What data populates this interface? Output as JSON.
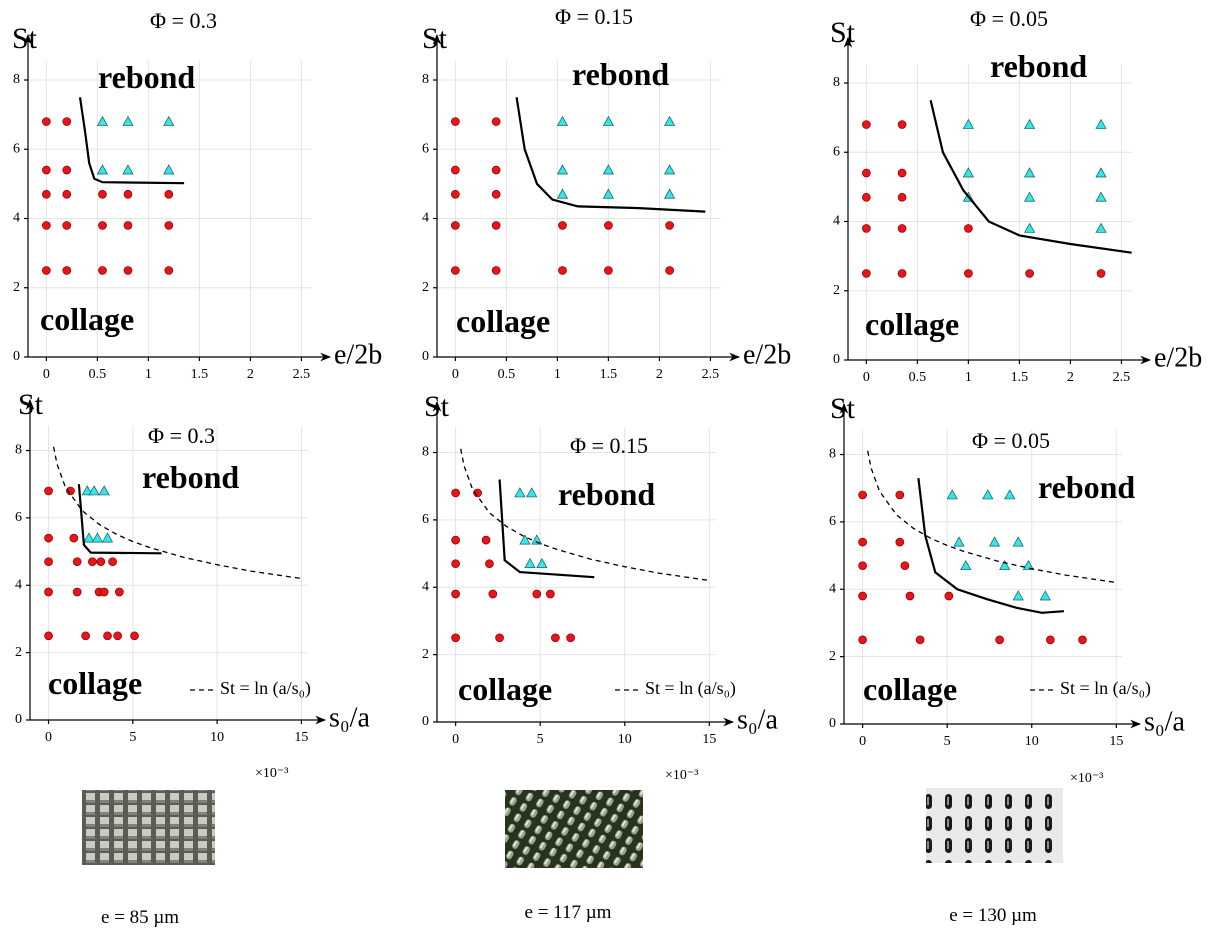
{
  "chart_data": [
    {
      "type": "scatter",
      "title": "Φ = 0.3",
      "xlabel": "e/2b",
      "ylabel": "St",
      "xlim": [
        -0.18,
        2.78
      ],
      "ylim": [
        0,
        9.3
      ],
      "xticks": [
        0,
        0.5,
        1,
        1.5,
        2,
        2.5
      ],
      "yticks": [
        0,
        2,
        4,
        6,
        8
      ],
      "grid": true,
      "series": [
        {
          "name": "collage",
          "color": "#e8141b",
          "label_color": "#f0141b",
          "marker": "circle",
          "x": [
            0,
            0,
            0,
            0,
            0,
            0.2,
            0.2,
            0.2,
            0.2,
            0.2,
            0.55,
            0.55,
            0.55,
            0.8,
            0.8,
            0.8,
            1.2,
            1.2,
            1.2
          ],
          "values": [
            6.8,
            5.4,
            4.7,
            3.8,
            2.5,
            6.8,
            5.4,
            4.7,
            3.8,
            2.5,
            4.7,
            3.8,
            2.5,
            4.7,
            3.8,
            2.5,
            4.7,
            3.8,
            2.5
          ]
        },
        {
          "name": "rebond",
          "color": "#33e6ec",
          "label_color": "#1a9a9a",
          "marker": "triangle",
          "x": [
            0.55,
            0.55,
            0.8,
            0.8,
            1.2,
            1.2
          ],
          "values": [
            6.8,
            5.4,
            6.8,
            5.4,
            6.8,
            5.4
          ]
        },
        {
          "color": "#000000",
          "line": "solid",
          "x": [
            0.33,
            0.38,
            0.42,
            0.47,
            0.55,
            1.35
          ],
          "values": [
            7.5,
            6.5,
            5.6,
            5.15,
            5.05,
            5.02
          ]
        }
      ]
    },
    {
      "type": "scatter",
      "title": "Φ = 0.15",
      "xlabel": "e/2b",
      "ylabel": "St",
      "xlim": [
        -0.18,
        2.78
      ],
      "ylim": [
        0,
        9.3
      ],
      "xticks": [
        0,
        0.5,
        1,
        1.5,
        2,
        2.5
      ],
      "yticks": [
        0,
        2,
        4,
        6,
        8
      ],
      "grid": true,
      "series": [
        {
          "name": "collage",
          "color": "#e8141b",
          "label_color": "#f0141b",
          "marker": "circle",
          "x": [
            0,
            0,
            0,
            0,
            0,
            0.4,
            0.4,
            0.4,
            0.4,
            0.4,
            1.05,
            1.05,
            1.5,
            1.5,
            2.1,
            2.1
          ],
          "values": [
            6.8,
            5.4,
            4.7,
            3.8,
            2.5,
            6.8,
            5.4,
            4.7,
            3.8,
            2.5,
            3.8,
            2.5,
            3.8,
            2.5,
            3.8,
            2.5
          ]
        },
        {
          "name": "rebond",
          "color": "#33e6ec",
          "label_color": "#1a9a9a",
          "marker": "triangle",
          "x": [
            1.05,
            1.05,
            1.05,
            1.5,
            1.5,
            1.5,
            2.1,
            2.1,
            2.1
          ],
          "values": [
            6.8,
            5.4,
            4.7,
            6.8,
            5.4,
            4.7,
            6.8,
            5.4,
            4.7
          ]
        },
        {
          "color": "#000000",
          "line": "solid",
          "x": [
            0.6,
            0.68,
            0.8,
            0.95,
            1.2,
            1.8,
            2.45
          ],
          "values": [
            7.5,
            6.0,
            5.0,
            4.55,
            4.35,
            4.3,
            4.2
          ]
        }
      ]
    },
    {
      "type": "scatter",
      "title": "Φ = 0.05",
      "xlabel": "e/2b",
      "ylabel": "St",
      "xlim": [
        -0.18,
        2.78
      ],
      "ylim": [
        0,
        9.3
      ],
      "xticks": [
        0,
        0.5,
        1,
        1.5,
        2,
        2.5
      ],
      "yticks": [
        0,
        2,
        4,
        6,
        8
      ],
      "grid": true,
      "series": [
        {
          "name": "collage",
          "color": "#e8141b",
          "label_color": "#f0141b",
          "marker": "circle",
          "x": [
            0,
            0,
            0,
            0,
            0,
            0.35,
            0.35,
            0.35,
            0.35,
            0.35,
            1.0,
            1.0,
            1.6,
            2.3
          ],
          "values": [
            6.8,
            5.4,
            4.7,
            3.8,
            2.5,
            6.8,
            5.4,
            4.7,
            3.8,
            2.5,
            3.8,
            2.5,
            2.5,
            2.5
          ]
        },
        {
          "name": "rebond",
          "color": "#33e6ec",
          "label_color": "#1a9a9a",
          "marker": "triangle",
          "x": [
            1.0,
            1.0,
            1.0,
            1.6,
            1.6,
            1.6,
            1.6,
            2.3,
            2.3,
            2.3,
            2.3
          ],
          "values": [
            6.8,
            5.4,
            4.7,
            6.8,
            5.4,
            4.7,
            3.8,
            6.8,
            5.4,
            4.7,
            3.8
          ]
        },
        {
          "color": "#000000",
          "line": "solid",
          "x": [
            0.63,
            0.75,
            0.95,
            1.2,
            1.5,
            2.0,
            2.6
          ],
          "values": [
            7.5,
            6.0,
            4.9,
            4.0,
            3.6,
            3.35,
            3.1
          ]
        }
      ]
    },
    {
      "type": "scatter",
      "title": "Φ = 0.3",
      "xlabel": "s₀/a",
      "ylabel": "St",
      "x_multiplier": "×10⁻³",
      "xlim": [
        -1.1,
        16.4
      ],
      "ylim": [
        0,
        9.5
      ],
      "xticks": [
        0,
        5,
        10,
        15
      ],
      "yticks": [
        0,
        2,
        4,
        6,
        8
      ],
      "grid": true,
      "series": [
        {
          "name": "collage",
          "color": "#e8141b",
          "label_color": "#f0141b",
          "marker": "circle",
          "x": [
            0,
            1.3,
            0,
            1.5,
            0,
            1.7,
            2.6,
            3.1,
            3.8,
            0,
            1.7,
            3,
            3.3,
            4.2,
            0,
            2.2,
            3.5,
            4.1,
            5.1
          ],
          "values": [
            6.8,
            6.8,
            5.4,
            5.4,
            4.7,
            4.7,
            4.7,
            4.7,
            4.7,
            3.8,
            3.8,
            3.8,
            3.8,
            3.8,
            2.5,
            2.5,
            2.5,
            2.5,
            2.5
          ]
        },
        {
          "name": "rebond",
          "color": "#33e6ec",
          "label_color": "#1a9a9a",
          "marker": "triangle",
          "x": [
            2.3,
            2.7,
            3.3,
            2.4,
            2.9,
            3.5
          ],
          "values": [
            6.8,
            6.8,
            6.8,
            5.4,
            5.4,
            5.4
          ]
        },
        {
          "color": "#000000",
          "line": "solid",
          "x": [
            1.8,
            2.1,
            2.5,
            6.7
          ],
          "values": [
            7.0,
            5.2,
            4.97,
            4.95
          ]
        },
        {
          "name": "St = ln (a/s₀)",
          "color": "#000000",
          "line": "dashed",
          "x": [
            0.3,
            0.5,
            1,
            2,
            3,
            4,
            5,
            6,
            8,
            10,
            12,
            15
          ],
          "values": [
            8.11,
            7.6,
            6.91,
            6.21,
            5.81,
            5.52,
            5.3,
            5.12,
            4.83,
            4.61,
            4.42,
            4.2
          ]
        }
      ]
    },
    {
      "type": "scatter",
      "title": "Φ = 0.15",
      "xlabel": "s₀/a",
      "ylabel": "St",
      "x_multiplier": "×10⁻³",
      "xlim": [
        -1.1,
        16.4
      ],
      "ylim": [
        0,
        9.5
      ],
      "xticks": [
        0,
        5,
        10,
        15
      ],
      "yticks": [
        0,
        2,
        4,
        6,
        8
      ],
      "grid": true,
      "series": [
        {
          "name": "collage",
          "color": "#e8141b",
          "label_color": "#f0141b",
          "marker": "circle",
          "x": [
            0,
            1.3,
            0,
            1.8,
            0,
            2.0,
            0,
            2.2,
            4.8,
            5.6,
            0,
            2.6,
            5.9,
            6.8
          ],
          "values": [
            6.8,
            6.8,
            5.4,
            5.4,
            4.7,
            4.7,
            3.8,
            3.8,
            3.8,
            3.8,
            2.5,
            2.5,
            2.5,
            2.5
          ]
        },
        {
          "name": "rebond",
          "color": "#33e6ec",
          "label_color": "#1a9a9a",
          "marker": "triangle",
          "x": [
            3.8,
            4.5,
            4.1,
            4.8,
            4.4,
            5.1
          ],
          "values": [
            6.8,
            6.8,
            5.4,
            5.4,
            4.7,
            4.7
          ]
        },
        {
          "color": "#000000",
          "line": "solid",
          "x": [
            2.6,
            2.9,
            3.8,
            8.2
          ],
          "values": [
            7.2,
            4.8,
            4.45,
            4.3
          ]
        },
        {
          "name": "St = ln (a/s₀)",
          "color": "#000000",
          "line": "dashed",
          "x": [
            0.3,
            0.5,
            1,
            2,
            3,
            4,
            5,
            6,
            8,
            10,
            12,
            15
          ],
          "values": [
            8.11,
            7.6,
            6.91,
            6.21,
            5.81,
            5.52,
            5.3,
            5.12,
            4.83,
            4.61,
            4.42,
            4.2
          ]
        }
      ]
    },
    {
      "type": "scatter",
      "title": "Φ = 0.05",
      "xlabel": "s₀/a",
      "ylabel": "St",
      "x_multiplier": "×10⁻³",
      "xlim": [
        -1.1,
        16.4
      ],
      "ylim": [
        0,
        9.5
      ],
      "xticks": [
        0,
        5,
        10,
        15
      ],
      "yticks": [
        0,
        2,
        4,
        6,
        8
      ],
      "grid": true,
      "series": [
        {
          "name": "collage",
          "color": "#e8141b",
          "label_color": "#f0141b",
          "marker": "circle",
          "x": [
            0,
            2.2,
            0,
            2.2,
            0,
            2.5,
            0,
            2.8,
            5.1,
            0,
            3.4,
            8.1,
            11.1,
            13.0
          ],
          "values": [
            6.8,
            6.8,
            5.4,
            5.4,
            4.7,
            4.7,
            3.8,
            3.8,
            3.8,
            2.5,
            2.5,
            2.5,
            2.5,
            2.5
          ]
        },
        {
          "name": "rebond",
          "color": "#33e6ec",
          "label_color": "#1a9a9a",
          "marker": "triangle",
          "x": [
            5.3,
            7.4,
            8.7,
            5.7,
            7.8,
            9.2,
            6.1,
            8.4,
            9.8,
            9.2,
            10.8
          ],
          "values": [
            6.8,
            6.8,
            6.8,
            5.4,
            5.4,
            5.4,
            4.7,
            4.7,
            4.7,
            3.8,
            3.8
          ]
        },
        {
          "color": "#000000",
          "line": "solid",
          "x": [
            3.3,
            3.7,
            4.3,
            5.6,
            7.4,
            9.1,
            10.6,
            11.9
          ],
          "values": [
            7.3,
            5.6,
            4.5,
            4.0,
            3.7,
            3.45,
            3.3,
            3.35
          ]
        },
        {
          "name": "St = ln (a/s₀)",
          "color": "#000000",
          "line": "dashed",
          "x": [
            0.3,
            0.5,
            1,
            2,
            3,
            4,
            5,
            6,
            8,
            10,
            12,
            15
          ],
          "values": [
            8.11,
            7.6,
            6.91,
            6.21,
            5.81,
            5.52,
            5.3,
            5.12,
            4.83,
            4.61,
            4.42,
            4.2
          ]
        }
      ]
    }
  ],
  "captions": [
    "e = 85 µm",
    "e = 117 µm",
    "e = 130 µm"
  ]
}
